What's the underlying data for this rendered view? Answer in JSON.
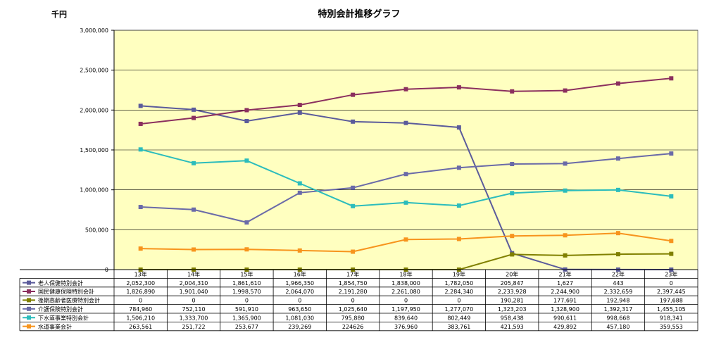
{
  "chart_data": {
    "type": "line",
    "title": "特別会計推移グラフ",
    "unit_label": "千円",
    "categories": [
      "13年",
      "14年",
      "15年",
      "16年",
      "17年",
      "18年",
      "19年",
      "20年",
      "21年",
      "22年",
      "23年"
    ],
    "ylim": [
      0,
      3000000
    ],
    "yticks": [
      0,
      500000,
      1000000,
      1500000,
      2000000,
      2500000,
      3000000
    ],
    "ytick_labels": [
      "0",
      "500,000",
      "1,000,000",
      "1,500,000",
      "2,000,000",
      "2,500,000",
      "3,000,000"
    ],
    "grid": true,
    "plot_background": "#ffffc0",
    "legend": "data-table-bottom",
    "series": [
      {
        "name": "老人保健特別会計",
        "color": "#5b5b9b",
        "marker": "square",
        "values": [
          2052300,
          2004310,
          1861610,
          1966350,
          1854750,
          1838000,
          1782050,
          205847,
          1627,
          443,
          0
        ],
        "labels": [
          "2,052,300",
          "2,004,310",
          "1,861,610",
          "1,966,350",
          "1,854,750",
          "1,838,000",
          "1,782,050",
          "205,847",
          "1,627",
          "443",
          "0"
        ]
      },
      {
        "name": "国民健康保険特別会計",
        "color": "#8b2f5e",
        "marker": "square",
        "values": [
          1826890,
          1901040,
          1998570,
          2064070,
          2191280,
          2261080,
          2284340,
          2233928,
          2244900,
          2332659,
          2397445
        ],
        "labels": [
          "1,826,890",
          "1,901,040",
          "1,998,570",
          "2,064,070",
          "2,191,280",
          "2,261,080",
          "2,284,340",
          "2,233,928",
          "2,244,900",
          "2,332,659",
          "2,397,445"
        ]
      },
      {
        "name": "後期高齢者医療特別会計",
        "color": "#808000",
        "marker": "square",
        "values": [
          0,
          0,
          0,
          0,
          0,
          0,
          0,
          190281,
          177691,
          192948,
          197688
        ],
        "labels": [
          "0",
          "0",
          "0",
          "0",
          "0",
          "0",
          "0",
          "190,281",
          "177,691",
          "192,948",
          "197,688"
        ]
      },
      {
        "name": "介護保険特別会計",
        "color": "#6a6aa8",
        "marker": "square",
        "values": [
          784960,
          752110,
          591910,
          963650,
          1025640,
          1197950,
          1277070,
          1323203,
          1328900,
          1392317,
          1455105
        ],
        "labels": [
          "784,960",
          "752,110",
          "591,910",
          "963,650",
          "1,025,640",
          "1,197,950",
          "1,277,070",
          "1,323,203",
          "1,328,900",
          "1,392,317",
          "1,455,105"
        ]
      },
      {
        "name": "下水道事業特別会計",
        "color": "#2bbcbc",
        "marker": "square",
        "values": [
          1506210,
          1333700,
          1365900,
          1081030,
          795880,
          839640,
          802449,
          958438,
          990611,
          998668,
          918341
        ],
        "labels": [
          "1,506,210",
          "1,333,700",
          "1,365,900",
          "1,081,030",
          "795,880",
          "839,640",
          "802,449",
          "958,438",
          "990,611",
          "998,668",
          "918,341"
        ]
      },
      {
        "name": "水道事業会計",
        "color": "#f7941d",
        "marker": "square",
        "values": [
          263561,
          251722,
          253677,
          239269,
          224626,
          376960,
          383761,
          421593,
          429892,
          457180,
          359553
        ],
        "labels": [
          "263,561",
          "251,722",
          "253,677",
          "239,269",
          "224626",
          "376,960",
          "383,761",
          "421,593",
          "429,892",
          "457,180",
          "359,553"
        ]
      }
    ]
  }
}
